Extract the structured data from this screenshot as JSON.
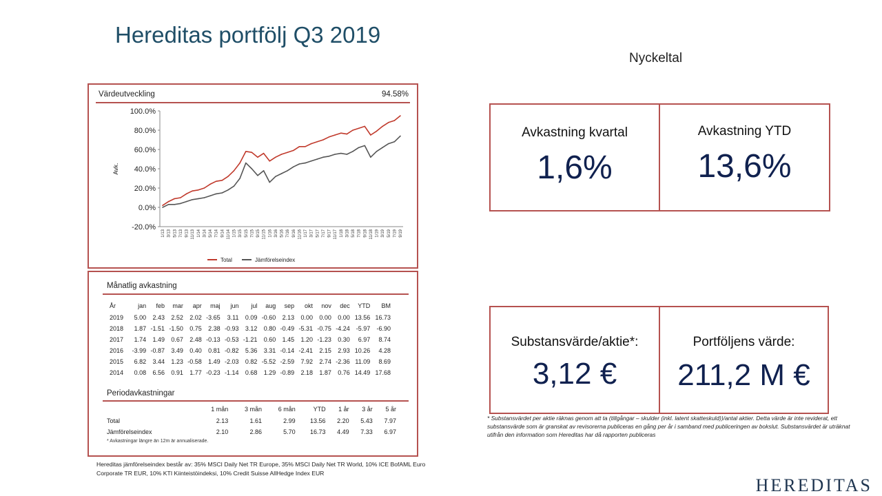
{
  "title": "Hereditas portfölj Q3 2019",
  "nyckeltal": "Nyckeltal",
  "kpis": {
    "kvartal": {
      "label": "Avkastning kvartal",
      "value": "1,6%"
    },
    "ytd": {
      "label": "Avkastning YTD",
      "value": "13,6%"
    },
    "substans": {
      "label": "Substansvärde/aktie*:",
      "value": "3,12 €"
    },
    "portfolj": {
      "label": "Portföljens värde:",
      "value": "211,2 M €"
    }
  },
  "chart": {
    "header": "Värdeutveckling",
    "total_return": "94.58%"
  },
  "chart_data": {
    "type": "line",
    "title": "Värdeutveckling",
    "ylabel": "Avk.",
    "xlabel": "",
    "ylim": [
      -20,
      100
    ],
    "yticks": [
      "-20.0%",
      "0.0%",
      "20.0%",
      "40.0%",
      "60.0%",
      "80.0%",
      "100.0%"
    ],
    "x": [
      "1/13",
      "3/13",
      "5/13",
      "7/13",
      "9/13",
      "11/13",
      "1/14",
      "3/14",
      "5/14",
      "7/14",
      "9/14",
      "11/14",
      "1/15",
      "3/15",
      "5/15",
      "7/15",
      "9/15",
      "11/15",
      "1/16",
      "3/16",
      "5/16",
      "7/16",
      "9/16",
      "11/16",
      "1/17",
      "3/17",
      "5/17",
      "7/17",
      "9/17",
      "11/17",
      "1/18",
      "3/18",
      "5/18",
      "7/18",
      "9/18",
      "11/18",
      "1/19",
      "3/19",
      "5/19",
      "7/19",
      "9/19"
    ],
    "series": [
      {
        "name": "Total",
        "color": "#c0392b",
        "values": [
          2,
          6,
          9,
          10,
          14,
          17,
          18,
          20,
          24,
          27,
          28,
          32,
          38,
          46,
          58,
          57,
          52,
          56,
          48,
          52,
          55,
          57,
          59,
          63,
          63,
          66,
          68,
          70,
          73,
          75,
          77,
          76,
          80,
          82,
          84,
          75,
          79,
          84,
          88,
          90,
          95
        ]
      },
      {
        "name": "Jämförelseindex",
        "color": "#555555",
        "values": [
          0,
          3,
          3,
          4,
          6,
          8,
          9,
          10,
          12,
          14,
          15,
          18,
          22,
          30,
          46,
          40,
          33,
          38,
          26,
          32,
          35,
          38,
          42,
          45,
          46,
          48,
          50,
          52,
          53,
          55,
          56,
          55,
          58,
          62,
          64,
          52,
          58,
          62,
          66,
          68,
          74
        ]
      }
    ],
    "legend": "bottom"
  },
  "monthly": {
    "header": "Månatlig avkastning",
    "columns": [
      "År",
      "jan",
      "feb",
      "mar",
      "apr",
      "maj",
      "jun",
      "jul",
      "aug",
      "sep",
      "okt",
      "nov",
      "dec",
      "YTD",
      "BM"
    ],
    "rows": [
      [
        "2019",
        "5.00",
        "2.43",
        "2.52",
        "2.02",
        "-3.65",
        "3.11",
        "0.09",
        "-0.60",
        "2.13",
        "0.00",
        "0.00",
        "0.00",
        "13.56",
        "16.73"
      ],
      [
        "2018",
        "1.87",
        "-1.51",
        "-1.50",
        "0.75",
        "2.38",
        "-0.93",
        "3.12",
        "0.80",
        "-0.49",
        "-5.31",
        "-0.75",
        "-4.24",
        "-5.97",
        "-6.90"
      ],
      [
        "2017",
        "1.74",
        "1.49",
        "0.67",
        "2.48",
        "-0.13",
        "-0.53",
        "-1.21",
        "0.60",
        "1.45",
        "1.20",
        "-1.23",
        "0.30",
        "6.97",
        "8.74"
      ],
      [
        "2016",
        "-3.99",
        "-0.87",
        "3.49",
        "0.40",
        "0.81",
        "-0.82",
        "5.36",
        "3.31",
        "-0.14",
        "-2.41",
        "2.15",
        "2.93",
        "10.26",
        "4.28"
      ],
      [
        "2015",
        "6.82",
        "3.44",
        "1.23",
        "-0.58",
        "1.49",
        "-2.03",
        "0.82",
        "-5.52",
        "-2.59",
        "7.92",
        "2.74",
        "-2.36",
        "11.09",
        "8.69"
      ],
      [
        "2014",
        "0.08",
        "6.56",
        "0.91",
        "1.77",
        "-0.23",
        "-1.14",
        "0.68",
        "1.29",
        "-0.89",
        "2.18",
        "1.87",
        "0.76",
        "14.49",
        "17.68"
      ]
    ]
  },
  "period": {
    "header": "Periodavkastningar",
    "columns": [
      "",
      "1 mån",
      "3 mån",
      "6 mån",
      "YTD",
      "1 år",
      "3 år",
      "5 år"
    ],
    "rows": [
      [
        "Total",
        "2.13",
        "1.61",
        "2.99",
        "13.56",
        "2.20",
        "5.43",
        "7.97"
      ],
      [
        "Jämförelseindex",
        "2.10",
        "2.86",
        "5.70",
        "16.73",
        "4.49",
        "7.33",
        "6.97"
      ]
    ],
    "note": "* Avkastningar längre än 12m är annualiserade."
  },
  "footnote": "* Substansvärdet per aktie räknas genom att ta (tillgångar – skulder (inkl. latent skatteskuld))/antal aktier. Detta värde är inte reviderat, ett substansvärde som är granskat av revisorerna publiceras en gång per år i samband med publiceringen av bokslut. Substansvärdet är uträknat utifrån den information som Hereditas har då rapporten publiceras",
  "bench_note": "Hereditas jämförelseindex består av: 35% MSCI Daily Net TR Europe, 35% MSCI Daily Net TR World, 10% ICE BofAML Euro Corporate TR EUR, 10% KTI Kiinteistöindeksi, 10% Credit Suisse AllHedge Index EUR",
  "logo": "HEREDITAS"
}
